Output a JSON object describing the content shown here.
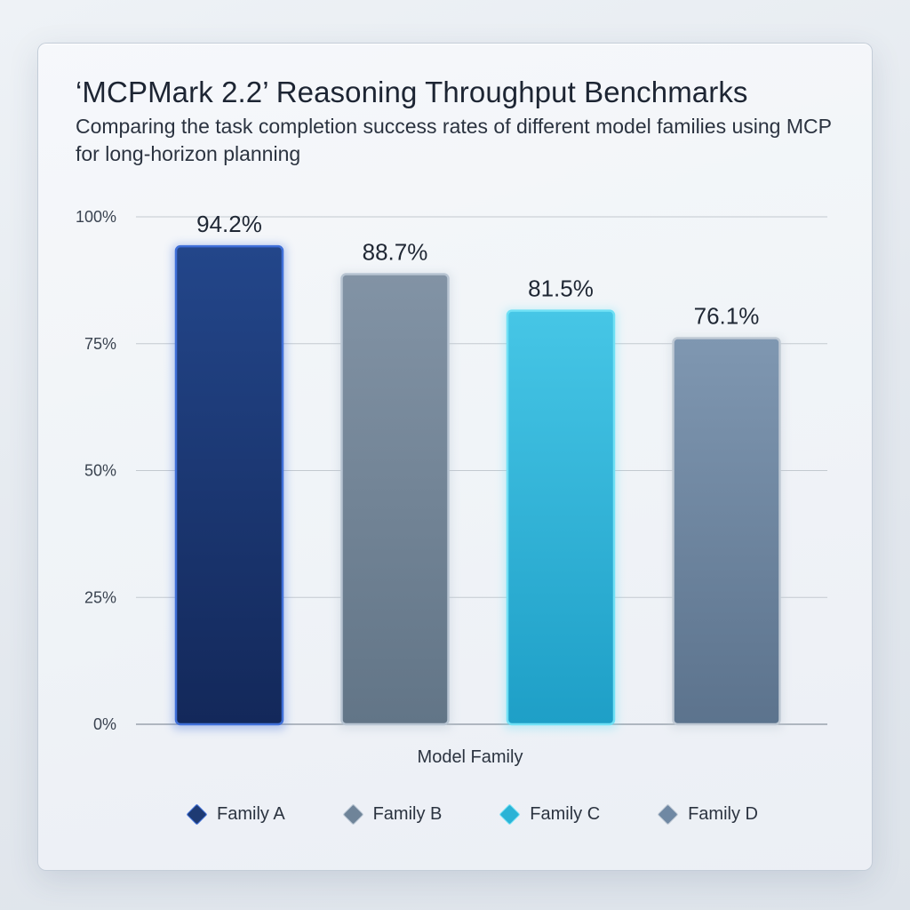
{
  "title": "‘MCPMark 2.2’ Reasoning Throughput Benchmarks",
  "subtitle": "Comparing the task completion success rates of different model families using MCP for long-horizon planning",
  "chart_data": {
    "type": "bar",
    "categories": [
      "Family A",
      "Family B",
      "Family C",
      "Family D"
    ],
    "values": [
      94.2,
      88.7,
      81.5,
      76.1
    ],
    "value_labels": [
      "94.2%",
      "88.7%",
      "81.5%",
      "76.1%"
    ],
    "xlabel": "Model Family",
    "ylabel": "",
    "ylim": [
      0,
      100
    ],
    "yticks": [
      0,
      25,
      50,
      75,
      100
    ],
    "ytick_labels": [
      "0%",
      "25%",
      "50%",
      "75%",
      "100%"
    ],
    "grid": true,
    "legend_placement": "bottom",
    "colors": [
      "#1e3a73",
      "#6f8499",
      "#2bb3d6",
      "#6f88a3"
    ],
    "legend": [
      "Family A",
      "Family B",
      "Family C",
      "Family D"
    ]
  }
}
